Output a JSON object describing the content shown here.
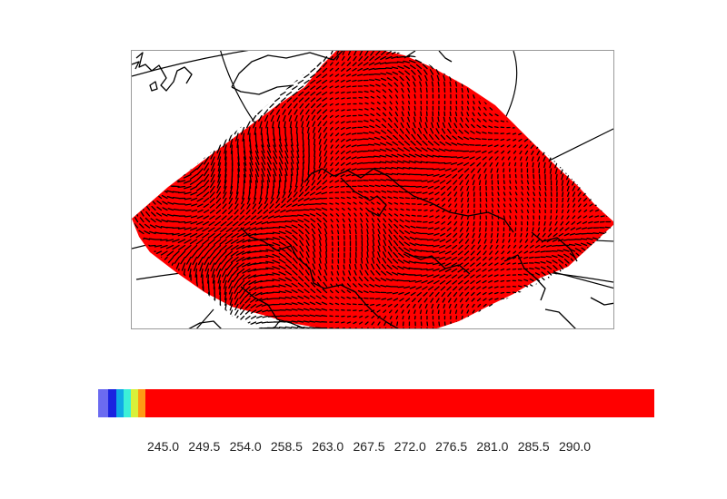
{
  "map": {
    "field_color": "#ff0000",
    "arrow_color": "#000000",
    "coastline_color": "#000000",
    "graticule_color": "#000000",
    "frame_color": "#9a9a9a"
  },
  "colorbar": {
    "segments": [
      {
        "color": "#6b6bf0",
        "weight": 1.4
      },
      {
        "color": "#1a22e0",
        "weight": 1.1
      },
      {
        "color": "#10a9e6",
        "weight": 1.0
      },
      {
        "color": "#3cf0d8",
        "weight": 1.0
      },
      {
        "color": "#d8f03a",
        "weight": 1.0
      },
      {
        "color": "#ff9a14",
        "weight": 1.0
      },
      {
        "color": "#ff0000",
        "weight": 70.0
      }
    ],
    "ticks": [
      "245.0",
      "249.5",
      "254.0",
      "258.5",
      "263.0",
      "267.5",
      "272.0",
      "276.5",
      "281.0",
      "285.5",
      "290.0"
    ]
  }
}
